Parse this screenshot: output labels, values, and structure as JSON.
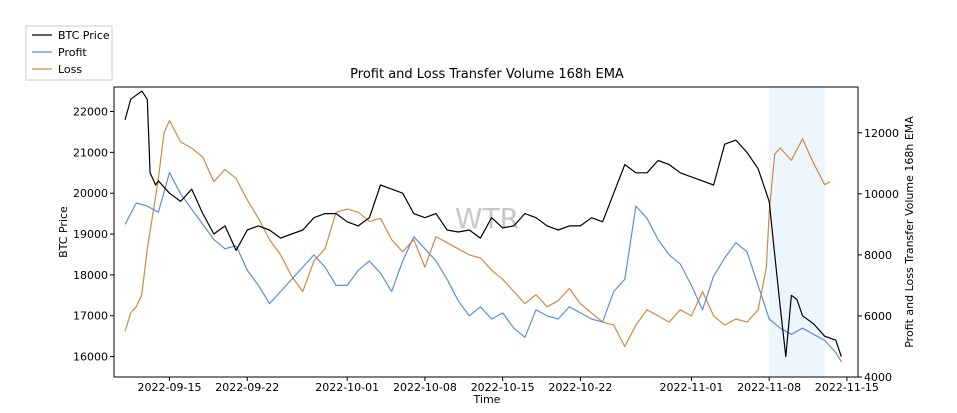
{
  "chart_data": {
    "type": "line",
    "title": "Profit and Loss Transfer Volume 168h EMA",
    "xlabel": "Time",
    "ylabel_left": "BTC Price",
    "ylabel_right": "Profit and Loss Transfer Volume 168h EMA",
    "watermark": "WTR",
    "x_range": [
      "2022-09-10",
      "2022-11-16"
    ],
    "x_ticks": [
      "2022-09-15",
      "2022-09-22",
      "2022-10-01",
      "2022-10-08",
      "2022-10-15",
      "2022-10-22",
      "2022-11-01",
      "2022-11-08",
      "2022-11-15"
    ],
    "y_left_range": [
      15500,
      22600
    ],
    "y_left_ticks": [
      16000,
      17000,
      18000,
      19000,
      20000,
      21000,
      22000
    ],
    "y_right_range": [
      4000,
      13500
    ],
    "y_right_ticks": [
      4000,
      6000,
      8000,
      10000,
      12000
    ],
    "highlight_span": [
      "2022-11-08",
      "2022-11-13"
    ],
    "legend_placement": "top-left outside",
    "series": [
      {
        "name": "BTC Price",
        "axis": "left",
        "color": "#000000",
        "points": [
          [
            "2022-09-11",
            21800
          ],
          [
            "2022-09-11T12",
            22300
          ],
          [
            "2022-09-12",
            22400
          ],
          [
            "2022-09-12T12",
            22500
          ],
          [
            "2022-09-13",
            22300
          ],
          [
            "2022-09-13T06",
            20500
          ],
          [
            "2022-09-13T18",
            20200
          ],
          [
            "2022-09-14",
            20300
          ],
          [
            "2022-09-15",
            20000
          ],
          [
            "2022-09-16",
            19800
          ],
          [
            "2022-09-17",
            20100
          ],
          [
            "2022-09-18",
            19500
          ],
          [
            "2022-09-19",
            19000
          ],
          [
            "2022-09-20",
            19200
          ],
          [
            "2022-09-21",
            18600
          ],
          [
            "2022-09-22",
            19100
          ],
          [
            "2022-09-23",
            19200
          ],
          [
            "2022-09-24",
            19100
          ],
          [
            "2022-09-25",
            18900
          ],
          [
            "2022-09-26",
            19000
          ],
          [
            "2022-09-27",
            19100
          ],
          [
            "2022-09-28",
            19400
          ],
          [
            "2022-09-29",
            19500
          ],
          [
            "2022-09-30",
            19500
          ],
          [
            "2022-10-01",
            19300
          ],
          [
            "2022-10-02",
            19200
          ],
          [
            "2022-10-03",
            19400
          ],
          [
            "2022-10-04",
            20200
          ],
          [
            "2022-10-05",
            20100
          ],
          [
            "2022-10-06",
            20000
          ],
          [
            "2022-10-07",
            19500
          ],
          [
            "2022-10-08",
            19400
          ],
          [
            "2022-10-09",
            19500
          ],
          [
            "2022-10-10",
            19100
          ],
          [
            "2022-10-11",
            19050
          ],
          [
            "2022-10-12",
            19100
          ],
          [
            "2022-10-13",
            18900
          ],
          [
            "2022-10-14",
            19400
          ],
          [
            "2022-10-15",
            19150
          ],
          [
            "2022-10-16",
            19200
          ],
          [
            "2022-10-17",
            19500
          ],
          [
            "2022-10-18",
            19400
          ],
          [
            "2022-10-19",
            19200
          ],
          [
            "2022-10-20",
            19100
          ],
          [
            "2022-10-21",
            19200
          ],
          [
            "2022-10-22",
            19200
          ],
          [
            "2022-10-23",
            19400
          ],
          [
            "2022-10-24",
            19300
          ],
          [
            "2022-10-25",
            20000
          ],
          [
            "2022-10-26",
            20700
          ],
          [
            "2022-10-27",
            20500
          ],
          [
            "2022-10-28",
            20500
          ],
          [
            "2022-10-29",
            20800
          ],
          [
            "2022-10-30",
            20700
          ],
          [
            "2022-10-31",
            20500
          ],
          [
            "2022-11-01",
            20400
          ],
          [
            "2022-11-02",
            20300
          ],
          [
            "2022-11-03",
            20200
          ],
          [
            "2022-11-04",
            21200
          ],
          [
            "2022-11-05",
            21300
          ],
          [
            "2022-11-06",
            21000
          ],
          [
            "2022-11-07",
            20600
          ],
          [
            "2022-11-08",
            19800
          ],
          [
            "2022-11-08T12",
            18500
          ],
          [
            "2022-11-09",
            17200
          ],
          [
            "2022-11-09T12",
            16000
          ],
          [
            "2022-11-10",
            17500
          ],
          [
            "2022-11-10T12",
            17400
          ],
          [
            "2022-11-11",
            17000
          ],
          [
            "2022-11-12",
            16800
          ],
          [
            "2022-11-13",
            16500
          ],
          [
            "2022-11-14",
            16400
          ],
          [
            "2022-11-14T12",
            16000
          ]
        ]
      },
      {
        "name": "Profit",
        "axis": "right",
        "color": "#5b8fdc",
        "points": [
          [
            "2022-09-11",
            9000
          ],
          [
            "2022-09-12",
            9700
          ],
          [
            "2022-09-13",
            9600
          ],
          [
            "2022-09-14",
            9400
          ],
          [
            "2022-09-15",
            10700
          ],
          [
            "2022-09-16",
            10000
          ],
          [
            "2022-09-17",
            9500
          ],
          [
            "2022-09-18",
            9000
          ],
          [
            "2022-09-19",
            8500
          ],
          [
            "2022-09-20",
            8200
          ],
          [
            "2022-09-21",
            8300
          ],
          [
            "2022-09-22",
            7500
          ],
          [
            "2022-09-23",
            7000
          ],
          [
            "2022-09-24",
            6400
          ],
          [
            "2022-09-25",
            6800
          ],
          [
            "2022-09-26",
            7200
          ],
          [
            "2022-09-27",
            7600
          ],
          [
            "2022-09-28",
            8000
          ],
          [
            "2022-09-29",
            7600
          ],
          [
            "2022-09-30",
            7000
          ],
          [
            "2022-10-01",
            7000
          ],
          [
            "2022-10-02",
            7500
          ],
          [
            "2022-10-03",
            7800
          ],
          [
            "2022-10-04",
            7400
          ],
          [
            "2022-10-05",
            6800
          ],
          [
            "2022-10-06",
            7800
          ],
          [
            "2022-10-07",
            8600
          ],
          [
            "2022-10-08",
            8200
          ],
          [
            "2022-10-09",
            7800
          ],
          [
            "2022-10-10",
            7200
          ],
          [
            "2022-10-11",
            6500
          ],
          [
            "2022-10-12",
            6000
          ],
          [
            "2022-10-13",
            6300
          ],
          [
            "2022-10-14",
            5900
          ],
          [
            "2022-10-15",
            6100
          ],
          [
            "2022-10-16",
            5600
          ],
          [
            "2022-10-17",
            5300
          ],
          [
            "2022-10-18",
            6200
          ],
          [
            "2022-10-19",
            6000
          ],
          [
            "2022-10-20",
            5900
          ],
          [
            "2022-10-21",
            6300
          ],
          [
            "2022-10-22",
            6100
          ],
          [
            "2022-10-23",
            5900
          ],
          [
            "2022-10-24",
            5800
          ],
          [
            "2022-10-25",
            6800
          ],
          [
            "2022-10-26",
            7200
          ],
          [
            "2022-10-27",
            9600
          ],
          [
            "2022-10-28",
            9200
          ],
          [
            "2022-10-29",
            8500
          ],
          [
            "2022-10-30",
            8000
          ],
          [
            "2022-10-31",
            7700
          ],
          [
            "2022-11-01",
            7000
          ],
          [
            "2022-11-02",
            6200
          ],
          [
            "2022-11-03",
            7300
          ],
          [
            "2022-11-04",
            7900
          ],
          [
            "2022-11-05",
            8400
          ],
          [
            "2022-11-06",
            8100
          ],
          [
            "2022-11-07",
            7000
          ],
          [
            "2022-11-08",
            5900
          ],
          [
            "2022-11-09",
            5600
          ],
          [
            "2022-11-10",
            5400
          ],
          [
            "2022-11-11",
            5600
          ],
          [
            "2022-11-12",
            5400
          ],
          [
            "2022-11-13",
            5200
          ],
          [
            "2022-11-14",
            4800
          ],
          [
            "2022-11-14T12",
            4500
          ]
        ]
      },
      {
        "name": "Loss",
        "axis": "right",
        "color": "#d3893f",
        "points": [
          [
            "2022-09-11",
            5500
          ],
          [
            "2022-09-11T12",
            6100
          ],
          [
            "2022-09-12",
            6300
          ],
          [
            "2022-09-12T12",
            6700
          ],
          [
            "2022-09-13",
            8200
          ],
          [
            "2022-09-14",
            10500
          ],
          [
            "2022-09-14T12",
            12000
          ],
          [
            "2022-09-15",
            12400
          ],
          [
            "2022-09-16",
            11700
          ],
          [
            "2022-09-17",
            11500
          ],
          [
            "2022-09-18",
            11200
          ],
          [
            "2022-09-19",
            10400
          ],
          [
            "2022-09-20",
            10800
          ],
          [
            "2022-09-21",
            10500
          ],
          [
            "2022-09-22",
            9800
          ],
          [
            "2022-09-23",
            9200
          ],
          [
            "2022-09-24",
            8500
          ],
          [
            "2022-09-25",
            8000
          ],
          [
            "2022-09-26",
            7300
          ],
          [
            "2022-09-27",
            6800
          ],
          [
            "2022-09-28",
            7800
          ],
          [
            "2022-09-29",
            8200
          ],
          [
            "2022-09-30",
            9400
          ],
          [
            "2022-10-01",
            9500
          ],
          [
            "2022-10-02",
            9400
          ],
          [
            "2022-10-03",
            9100
          ],
          [
            "2022-10-04",
            9200
          ],
          [
            "2022-10-05",
            8500
          ],
          [
            "2022-10-06",
            8100
          ],
          [
            "2022-10-07",
            8500
          ],
          [
            "2022-10-08",
            7600
          ],
          [
            "2022-10-09",
            8600
          ],
          [
            "2022-10-10",
            8400
          ],
          [
            "2022-10-11",
            8200
          ],
          [
            "2022-10-12",
            8000
          ],
          [
            "2022-10-13",
            7900
          ],
          [
            "2022-10-14",
            7500
          ],
          [
            "2022-10-15",
            7200
          ],
          [
            "2022-10-16",
            6800
          ],
          [
            "2022-10-17",
            6400
          ],
          [
            "2022-10-18",
            6700
          ],
          [
            "2022-10-19",
            6300
          ],
          [
            "2022-10-20",
            6500
          ],
          [
            "2022-10-21",
            6900
          ],
          [
            "2022-10-22",
            6400
          ],
          [
            "2022-10-23",
            6100
          ],
          [
            "2022-10-24",
            5800
          ],
          [
            "2022-10-25",
            5700
          ],
          [
            "2022-10-26",
            5000
          ],
          [
            "2022-10-27",
            5700
          ],
          [
            "2022-10-28",
            6200
          ],
          [
            "2022-10-29",
            6000
          ],
          [
            "2022-10-30",
            5800
          ],
          [
            "2022-10-31",
            6200
          ],
          [
            "2022-11-01",
            6000
          ],
          [
            "2022-11-02",
            6800
          ],
          [
            "2022-11-03",
            6000
          ],
          [
            "2022-11-04",
            5700
          ],
          [
            "2022-11-05",
            5900
          ],
          [
            "2022-11-06",
            5800
          ],
          [
            "2022-11-07",
            6200
          ],
          [
            "2022-11-07T18",
            7600
          ],
          [
            "2022-11-08",
            9400
          ],
          [
            "2022-11-08T12",
            11300
          ],
          [
            "2022-11-09",
            11500
          ],
          [
            "2022-11-10",
            11100
          ],
          [
            "2022-11-11",
            11800
          ],
          [
            "2022-11-12",
            11000
          ],
          [
            "2022-11-13",
            10300
          ],
          [
            "2022-11-13T12",
            10400
          ]
        ]
      }
    ]
  }
}
